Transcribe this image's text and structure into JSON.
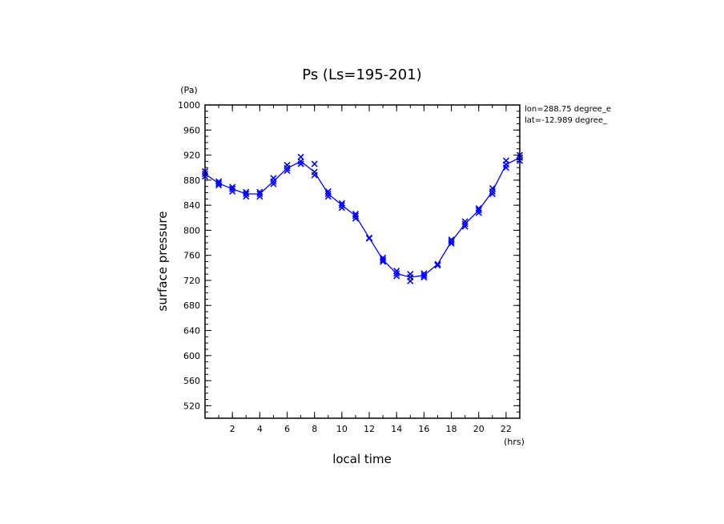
{
  "chart_data": {
    "type": "line",
    "title": "Ps (Ls=195-201)",
    "xlabel": "local time",
    "ylabel": "surface pressure",
    "x_unit": "(hrs)",
    "y_unit": "(Pa)",
    "xlim": [
      0,
      23
    ],
    "ylim": [
      500,
      1000
    ],
    "xticks": [
      2,
      4,
      6,
      8,
      10,
      12,
      14,
      16,
      18,
      20,
      22
    ],
    "yticks": [
      520,
      560,
      600,
      640,
      680,
      720,
      760,
      800,
      840,
      880,
      920,
      960,
      1000
    ],
    "annotations": [
      "lon=288.75 degree_e",
      "lat=-12.989 degree_"
    ],
    "series_color": "#0000ff",
    "series": [
      {
        "x": [
          0,
          1,
          2,
          3,
          4,
          5,
          6,
          7,
          8,
          9,
          10,
          11,
          12,
          13,
          14,
          15,
          16,
          17,
          18,
          19,
          20,
          21,
          22,
          23
        ],
        "values": [
          890,
          875,
          866,
          858,
          858,
          878,
          899,
          910,
          893,
          858,
          840,
          823,
          788,
          753,
          731,
          725,
          728,
          746,
          782,
          810,
          832,
          862,
          905,
          916
        ]
      }
    ],
    "scatter": {
      "x": [
        0,
        0,
        0,
        1,
        1,
        1,
        2,
        2,
        2,
        3,
        3,
        3,
        4,
        4,
        4,
        5,
        5,
        5,
        6,
        6,
        6,
        7,
        7,
        7,
        8,
        8,
        8,
        9,
        9,
        9,
        10,
        10,
        10,
        11,
        11,
        11,
        12,
        12,
        13,
        13,
        13,
        14,
        14,
        14,
        15,
        15,
        15,
        16,
        16,
        16,
        17,
        17,
        18,
        18,
        18,
        19,
        19,
        19,
        20,
        20,
        20,
        21,
        21,
        21,
        22,
        22,
        22,
        23,
        23,
        23
      ],
      "values": [
        886,
        890,
        894,
        872,
        875,
        878,
        862,
        866,
        869,
        854,
        858,
        861,
        854,
        858,
        861,
        874,
        878,
        883,
        895,
        899,
        904,
        906,
        910,
        917,
        888,
        893,
        906,
        854,
        858,
        862,
        836,
        840,
        843,
        819,
        823,
        826,
        787,
        788,
        750,
        753,
        756,
        727,
        731,
        735,
        719,
        725,
        730,
        725,
        728,
        731,
        744,
        746,
        779,
        782,
        785,
        806,
        810,
        814,
        828,
        832,
        835,
        858,
        862,
        867,
        900,
        905,
        911,
        911,
        916,
        920
      ]
    }
  }
}
